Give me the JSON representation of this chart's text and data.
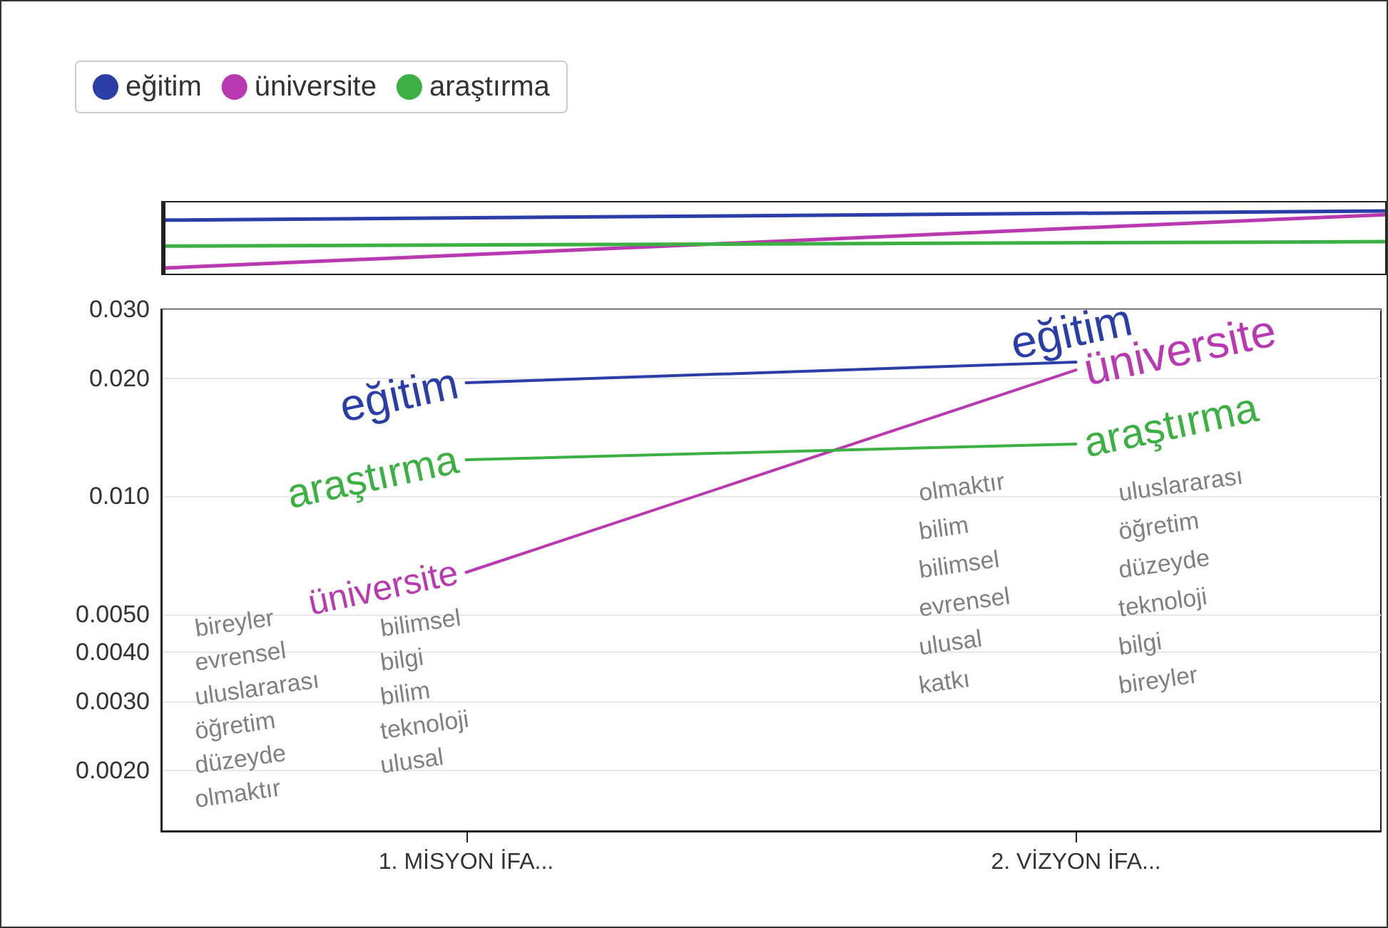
{
  "chart_data": {
    "type": "line",
    "categories": [
      "1. MİSYON İFA...",
      "2. VİZYON İFA..."
    ],
    "series": [
      {
        "name": "eğitim",
        "color": "#2b3ea8",
        "values": [
          0.0195,
          0.022
        ]
      },
      {
        "name": "üniversite",
        "color": "#b93ab0",
        "values": [
          0.0064,
          0.021
        ]
      },
      {
        "name": "araştırma",
        "color": "#3cb043",
        "values": [
          0.0124,
          0.0136
        ]
      }
    ],
    "log": "y",
    "ylim": [
      0.0014,
      0.03
    ],
    "yticks": [
      {
        "value": 0.002,
        "label": "0.0020"
      },
      {
        "value": 0.003,
        "label": "0.0030"
      },
      {
        "value": 0.004,
        "label": "0.0040"
      },
      {
        "value": 0.005,
        "label": "0.0050"
      },
      {
        "value": 0.01,
        "label": "0.010"
      },
      {
        "value": 0.02,
        "label": "0.020"
      },
      {
        "value": 0.03,
        "label": "0.030"
      }
    ],
    "grid": "y",
    "legend": "top left",
    "marker": "none",
    "line_style": "solid",
    "annotations": [
      "bireyler",
      "bilimsel",
      "evrensel",
      "bilgi",
      "uluslararası",
      "bilim",
      "öğretim",
      "teknoloji",
      "düzeyde",
      "ulusal",
      "olmaktır",
      "olmaktır",
      "uluslararası",
      "bilim",
      "öğretim",
      "bilimsel",
      "düzeyde",
      "evrensel",
      "teknoloji",
      "ulusal",
      "bilgi",
      "katkı",
      "bireyler"
    ]
  }
}
